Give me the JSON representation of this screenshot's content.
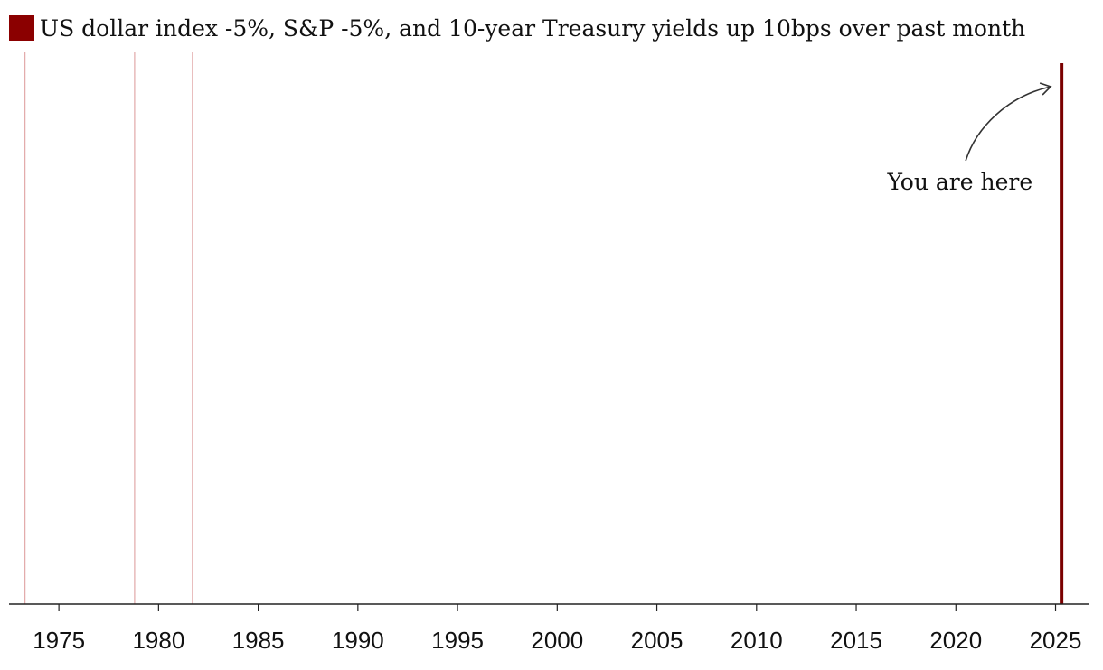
{
  "chart_data": {
    "type": "event-lines",
    "legend": {
      "label": "US dollar index -5%, S&P -5%, and 10-year Treasury yields up 10bps over past month",
      "color": "#8b0000"
    },
    "events": [
      {
        "date": 1973.3,
        "intensity": "faint"
      },
      {
        "date": 1978.8,
        "intensity": "faint"
      },
      {
        "date": 1981.7,
        "intensity": "faint"
      },
      {
        "date": 2025.3,
        "intensity": "strong"
      }
    ],
    "xlim": [
      1972.5,
      2026.7
    ],
    "xticks": [
      1975,
      1980,
      1985,
      1990,
      1995,
      2000,
      2005,
      2010,
      2015,
      2020,
      2025
    ],
    "xlabel": "",
    "ylabel": "",
    "annotation": {
      "text": "You are here",
      "target_date": 2025.3
    },
    "colors": {
      "faint_line": "#e2a9a9",
      "strong_line": "#7a0000",
      "axis": "#222222",
      "arrow": "#333333"
    }
  }
}
